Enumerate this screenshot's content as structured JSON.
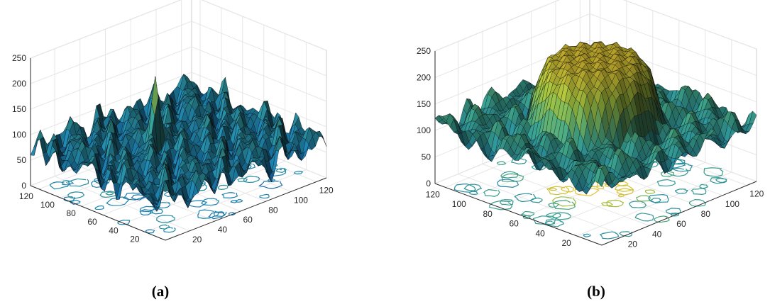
{
  "figure": {
    "panel_labels": [
      "(a)",
      "(b)"
    ]
  },
  "chart_data": [
    {
      "type": "surface",
      "panel_label": "(a)",
      "x_range": [
        1,
        128
      ],
      "y_range": [
        1,
        128
      ],
      "zlim": [
        0,
        250
      ],
      "x_ticks": [
        "20",
        "40",
        "60",
        "80",
        "100",
        "120"
      ],
      "y_ticks": [
        "20",
        "40",
        "60",
        "80",
        "100",
        "120"
      ],
      "z_ticks": [
        "0",
        "50",
        "100",
        "150",
        "200",
        "250"
      ],
      "grid": true,
      "contour_projection": true,
      "colormap": "parula",
      "surface_summary": {
        "mean_z": 75,
        "min_z": 5,
        "max_z": 230,
        "peak_xy": [
          55,
          75
        ]
      }
    },
    {
      "type": "surface",
      "panel_label": "(b)",
      "x_range": [
        1,
        128
      ],
      "y_range": [
        1,
        128
      ],
      "zlim": [
        0,
        250
      ],
      "x_ticks": [
        "20",
        "40",
        "60",
        "80",
        "100",
        "120"
      ],
      "y_ticks": [
        "20",
        "40",
        "60",
        "80",
        "100",
        "120"
      ],
      "z_ticks": [
        "0",
        "50",
        "100",
        "150",
        "200",
        "250"
      ],
      "grid": true,
      "contour_projection": true,
      "colormap": "parula",
      "surface_summary": {
        "mean_z": 150,
        "min_z": 5,
        "max_z": 255,
        "central_plateau_z": 240
      }
    }
  ],
  "colors": {
    "low": "#1a2a6e",
    "mid_low": "#1b7fb3",
    "mid": "#3aa08a",
    "mid_high": "#9bbd3f",
    "high": "#e8c330",
    "grid": "#e6e6e6",
    "axis": "#262626"
  }
}
